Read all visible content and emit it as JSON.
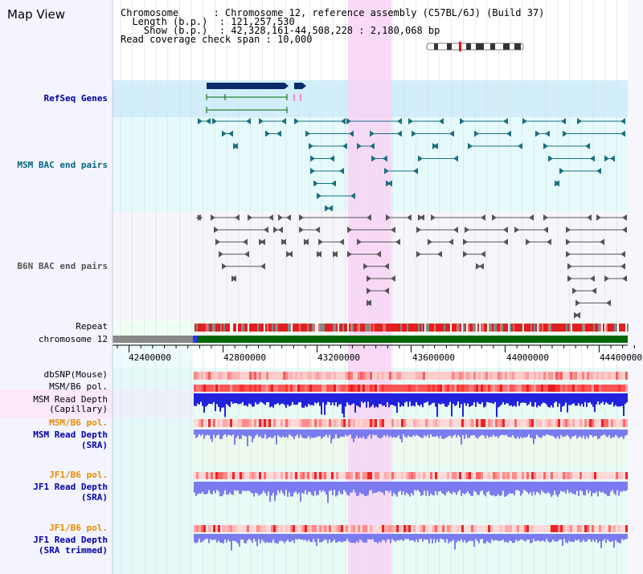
{
  "title": "Map View",
  "info": {
    "chromosome_key": "Chromosome",
    "chromosome_val": "Chromosome 12, reference assembly (C57BL/6J) (Build 37)",
    "length_key": "Length (b.p.)",
    "length_val": "121,257,530",
    "show_key": "Show (b.p.)",
    "show_val": "42,328,161-44,508,228 : 2,180,068 bp",
    "coverage_key": "Read coverage check span",
    "coverage_val": "10,000"
  },
  "tracks": {
    "refseq": "RefSeq Genes",
    "msm_bac": "MSM BAC end pairs",
    "b6n_bac": "B6N BAC end pairs",
    "repeat": "Repeat",
    "chromosome": "chromosome 12",
    "dbsnp": "dbSNP(Mouse)",
    "msm_b6_pol_1": "MSM/B6 pol.",
    "msm_depth_cap_1": "MSM Read Depth",
    "msm_depth_cap_2": "(Capillary)",
    "msm_b6_pol_2": "MSM/B6 pol.",
    "msm_depth_sra_1": "MSM Read Depth",
    "msm_depth_sra_2": "(SRA)",
    "jf1_b6_pol_1": "JF1/B6 pol.",
    "jf1_depth_sra_1": "JF1 Read Depth",
    "jf1_depth_sra_2": "(SRA)",
    "jf1_b6_pol_2": "JF1/B6 pol.",
    "jf1_depth_trim_1": "JF1 Read Depth",
    "jf1_depth_trim_2": "(SRA trimmed)"
  },
  "axis_ticks": [
    "42400000",
    "42800000",
    "43200000",
    "43600000",
    "44000000",
    "44400000"
  ],
  "colors": {
    "refseq_label": "#000099",
    "msm_label": "#006680",
    "b6n_label": "#555555",
    "orange_label": "#e88a00",
    "highlight": "#f7d4f4",
    "refseq_bg": "#d2eefa",
    "msm_bg": "#e6fafb",
    "b6n_bg": "#f6f6fa",
    "chrom_green": "#006400",
    "depth_blue": "#2222dd",
    "depth_lightblue": "#7b7bf0"
  }
}
